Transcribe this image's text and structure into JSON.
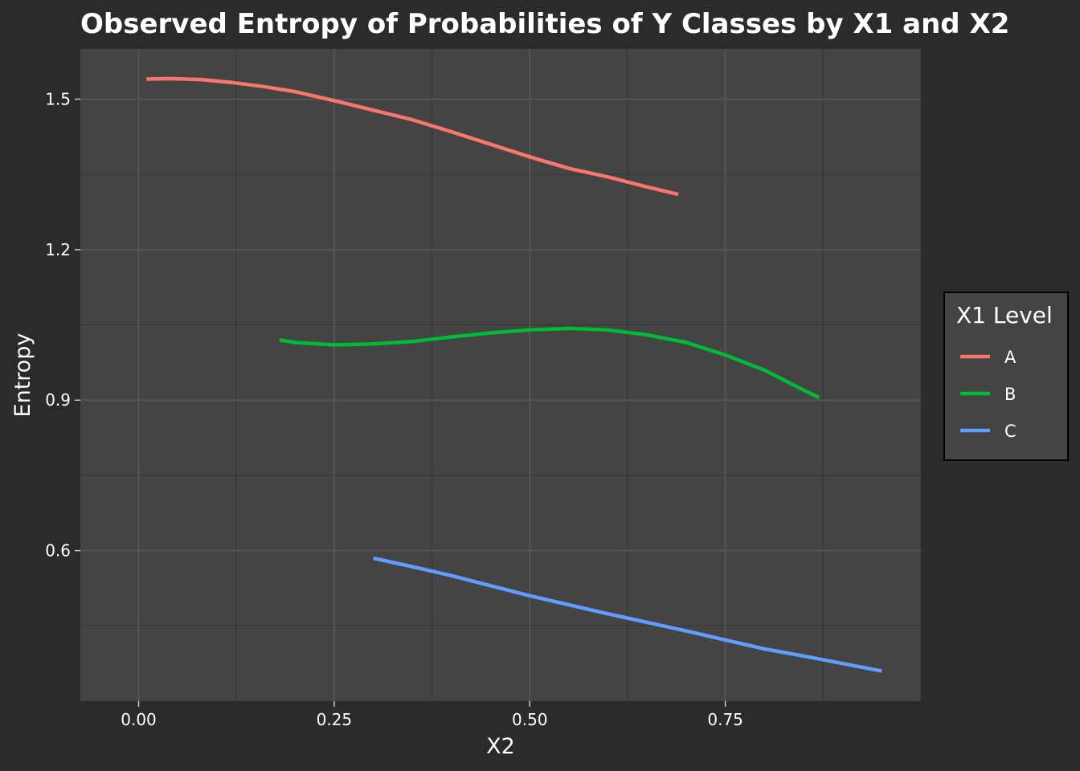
{
  "chart_data": {
    "type": "line",
    "title": "Observed Entropy of Probabilities of Y Classes by X1 and X2",
    "xlabel": "X2",
    "ylabel": "Entropy",
    "xlim": [
      -0.0745,
      1.0
    ],
    "ylim": [
      0.3,
      1.6
    ],
    "x_ticks": [
      0.0,
      0.25,
      0.5,
      0.75
    ],
    "x_tick_labels": [
      "0.00",
      "0.25",
      "0.50",
      "0.75"
    ],
    "y_ticks": [
      0.6,
      0.9,
      1.2,
      1.5
    ],
    "y_tick_labels": [
      "0.6",
      "0.9",
      "1.2",
      "1.5"
    ],
    "grid": true,
    "legend": {
      "title": "X1 Level",
      "position": "right"
    },
    "series": [
      {
        "name": "A",
        "color": "#f8766d",
        "x": [
          0.01,
          0.04,
          0.08,
          0.12,
          0.16,
          0.2,
          0.25,
          0.3,
          0.35,
          0.4,
          0.45,
          0.5,
          0.55,
          0.6,
          0.65,
          0.69
        ],
        "y": [
          1.54,
          1.541,
          1.539,
          1.533,
          1.525,
          1.515,
          1.497,
          1.478,
          1.459,
          1.435,
          1.41,
          1.385,
          1.362,
          1.345,
          1.325,
          1.31
        ]
      },
      {
        "name": "B",
        "color": "#00ba38",
        "x": [
          0.18,
          0.2,
          0.25,
          0.3,
          0.35,
          0.4,
          0.45,
          0.5,
          0.55,
          0.6,
          0.65,
          0.7,
          0.75,
          0.8,
          0.85,
          0.87
        ],
        "y": [
          1.02,
          1.015,
          1.01,
          1.012,
          1.017,
          1.026,
          1.034,
          1.04,
          1.043,
          1.04,
          1.03,
          1.015,
          0.99,
          0.96,
          0.92,
          0.905
        ]
      },
      {
        "name": "C",
        "color": "#619cff",
        "x": [
          0.3,
          0.35,
          0.4,
          0.45,
          0.5,
          0.55,
          0.6,
          0.65,
          0.7,
          0.75,
          0.8,
          0.85,
          0.9,
          0.95
        ],
        "y": [
          0.585,
          0.568,
          0.55,
          0.53,
          0.51,
          0.492,
          0.474,
          0.457,
          0.44,
          0.422,
          0.404,
          0.39,
          0.375,
          0.36
        ]
      }
    ]
  }
}
